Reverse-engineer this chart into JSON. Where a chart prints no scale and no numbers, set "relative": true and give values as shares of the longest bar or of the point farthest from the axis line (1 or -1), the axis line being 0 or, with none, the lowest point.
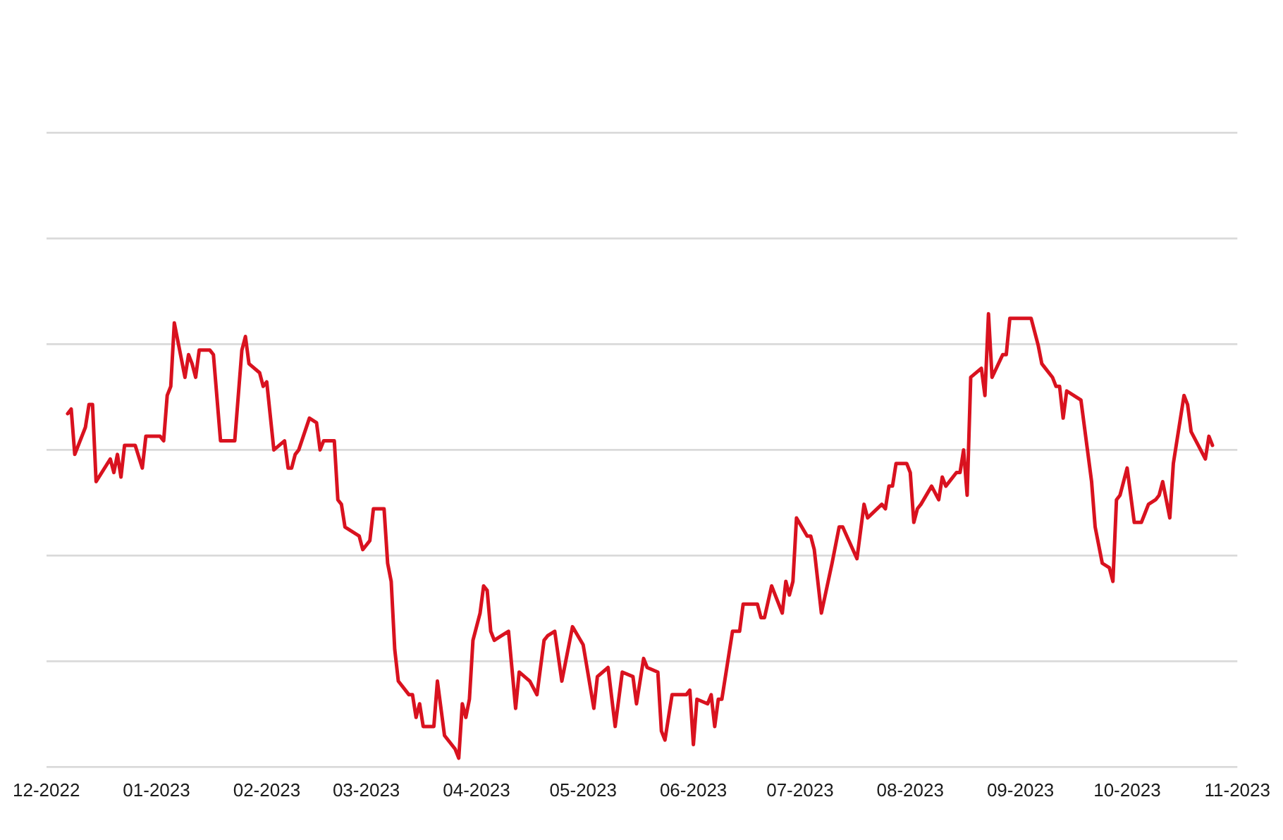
{
  "chart_data": {
    "type": "line",
    "relative": true,
    "grid": "y",
    "tick_labels": "x",
    "line_style": "solid",
    "xlim": [
      "2022-12-01",
      "2023-11-01"
    ],
    "xticks": [
      {
        "value": "2022-12-01",
        "label": "12-2022"
      },
      {
        "value": "2023-01-01",
        "label": "01-2023"
      },
      {
        "value": "2023-02-01",
        "label": "02-2023"
      },
      {
        "value": "2023-03-01",
        "label": "03-2023"
      },
      {
        "value": "2023-04-01",
        "label": "04-2023"
      },
      {
        "value": "2023-05-01",
        "label": "05-2023"
      },
      {
        "value": "2023-06-01",
        "label": "06-2023"
      },
      {
        "value": "2023-07-01",
        "label": "07-2023"
      },
      {
        "value": "2023-08-01",
        "label": "08-2023"
      },
      {
        "value": "2023-09-01",
        "label": "09-2023"
      },
      {
        "value": "2023-10-01",
        "label": "10-2023"
      },
      {
        "value": "2023-11-01",
        "label": "11-2023"
      }
    ],
    "x": [
      "2022-12-07",
      "2022-12-08",
      "2022-12-09",
      "2022-12-12",
      "2022-12-13",
      "2022-12-14",
      "2022-12-15",
      "2022-12-19",
      "2022-12-20",
      "2022-12-21",
      "2022-12-22",
      "2022-12-23",
      "2022-12-26",
      "2022-12-28",
      "2022-12-29",
      "2022-12-30",
      "2023-01-02",
      "2023-01-03",
      "2023-01-04",
      "2023-01-05",
      "2023-01-06",
      "2023-01-07",
      "2023-01-09",
      "2023-01-10",
      "2023-01-11",
      "2023-01-12",
      "2023-01-13",
      "2023-01-16",
      "2023-01-17",
      "2023-01-19",
      "2023-01-23",
      "2023-01-25",
      "2023-01-26",
      "2023-01-27",
      "2023-01-30",
      "2023-01-31",
      "2023-02-01",
      "2023-02-03",
      "2023-02-06",
      "2023-02-07",
      "2023-02-08",
      "2023-02-09",
      "2023-02-10",
      "2023-02-13",
      "2023-02-15",
      "2023-02-16",
      "2023-02-17",
      "2023-02-20",
      "2023-02-21",
      "2023-02-22",
      "2023-02-23",
      "2023-02-27",
      "2023-02-28",
      "2023-03-02",
      "2023-03-03",
      "2023-03-06",
      "2023-03-07",
      "2023-03-08",
      "2023-03-09",
      "2023-03-10",
      "2023-03-13",
      "2023-03-14",
      "2023-03-15",
      "2023-03-16",
      "2023-03-17",
      "2023-03-20",
      "2023-03-21",
      "2023-03-23",
      "2023-03-26",
      "2023-03-27",
      "2023-03-28",
      "2023-03-29",
      "2023-03-30",
      "2023-03-31",
      "2023-04-02",
      "2023-04-03",
      "2023-04-04",
      "2023-04-05",
      "2023-04-06",
      "2023-04-08",
      "2023-04-10",
      "2023-04-12",
      "2023-04-13",
      "2023-04-16",
      "2023-04-18",
      "2023-04-20",
      "2023-04-21",
      "2023-04-23",
      "2023-04-25",
      "2023-04-26",
      "2023-04-28",
      "2023-05-01",
      "2023-05-04",
      "2023-05-05",
      "2023-05-08",
      "2023-05-10",
      "2023-05-12",
      "2023-05-15",
      "2023-05-16",
      "2023-05-18",
      "2023-05-19",
      "2023-05-22",
      "2023-05-23",
      "2023-05-24",
      "2023-05-26",
      "2023-05-30",
      "2023-05-31",
      "2023-06-01",
      "2023-06-02",
      "2023-06-05",
      "2023-06-06",
      "2023-06-07",
      "2023-06-08",
      "2023-06-09",
      "2023-06-12",
      "2023-06-14",
      "2023-06-15",
      "2023-06-19",
      "2023-06-20",
      "2023-06-21",
      "2023-06-23",
      "2023-06-26",
      "2023-06-27",
      "2023-06-28",
      "2023-06-29",
      "2023-06-30",
      "2023-07-03",
      "2023-07-04",
      "2023-07-05",
      "2023-07-07",
      "2023-07-10",
      "2023-07-12",
      "2023-07-13",
      "2023-07-17",
      "2023-07-19",
      "2023-07-20",
      "2023-07-24",
      "2023-07-25",
      "2023-07-26",
      "2023-07-27",
      "2023-07-28",
      "2023-07-31",
      "2023-08-01",
      "2023-08-02",
      "2023-08-03",
      "2023-08-04",
      "2023-08-07",
      "2023-08-09",
      "2023-08-10",
      "2023-08-11",
      "2023-08-14",
      "2023-08-15",
      "2023-08-16",
      "2023-08-17",
      "2023-08-18",
      "2023-08-21",
      "2023-08-22",
      "2023-08-23",
      "2023-08-24",
      "2023-08-27",
      "2023-08-28",
      "2023-08-29",
      "2023-08-30",
      "2023-09-01",
      "2023-09-04",
      "2023-09-06",
      "2023-09-07",
      "2023-09-08",
      "2023-09-10",
      "2023-09-11",
      "2023-09-12",
      "2023-09-13",
      "2023-09-14",
      "2023-09-18",
      "2023-09-21",
      "2023-09-22",
      "2023-09-24",
      "2023-09-26",
      "2023-09-27",
      "2023-09-28",
      "2023-09-29",
      "2023-10-01",
      "2023-10-03",
      "2023-10-04",
      "2023-10-05",
      "2023-10-06",
      "2023-10-07",
      "2023-10-09",
      "2023-10-10",
      "2023-10-11",
      "2023-10-12",
      "2023-10-13",
      "2023-10-14",
      "2023-10-17",
      "2023-10-18",
      "2023-10-19",
      "2023-10-21",
      "2023-10-23",
      "2023-10-24",
      "2023-10-25"
    ],
    "series": [
      {
        "color": "#d9121f",
        "values": [
          0.78,
          0.79,
          0.69,
          0.75,
          0.8,
          0.8,
          0.63,
          0.68,
          0.65,
          0.69,
          0.64,
          0.71,
          0.71,
          0.66,
          0.73,
          0.73,
          0.73,
          0.72,
          0.82,
          0.84,
          0.98,
          0.94,
          0.86,
          0.91,
          0.89,
          0.86,
          0.92,
          0.92,
          0.91,
          0.72,
          0.72,
          0.92,
          0.95,
          0.89,
          0.87,
          0.84,
          0.85,
          0.7,
          0.72,
          0.66,
          0.66,
          0.69,
          0.7,
          0.77,
          0.76,
          0.7,
          0.72,
          0.72,
          0.59,
          0.58,
          0.53,
          0.51,
          0.48,
          0.5,
          0.57,
          0.57,
          0.45,
          0.41,
          0.26,
          0.19,
          0.16,
          0.16,
          0.11,
          0.14,
          0.09,
          0.09,
          0.19,
          0.07,
          0.04,
          0.02,
          0.14,
          0.11,
          0.15,
          0.28,
          0.34,
          0.4,
          0.39,
          0.3,
          0.28,
          0.29,
          0.3,
          0.13,
          0.21,
          0.19,
          0.16,
          0.28,
          0.29,
          0.3,
          0.19,
          0.23,
          0.31,
          0.27,
          0.13,
          0.2,
          0.22,
          0.09,
          0.21,
          0.2,
          0.14,
          0.24,
          0.22,
          0.21,
          0.08,
          0.06,
          0.16,
          0.16,
          0.17,
          0.05,
          0.15,
          0.14,
          0.16,
          0.09,
          0.15,
          0.15,
          0.3,
          0.3,
          0.36,
          0.36,
          0.33,
          0.33,
          0.4,
          0.34,
          0.41,
          0.38,
          0.41,
          0.55,
          0.51,
          0.51,
          0.48,
          0.34,
          0.45,
          0.53,
          0.53,
          0.46,
          0.58,
          0.55,
          0.58,
          0.57,
          0.62,
          0.62,
          0.67,
          0.67,
          0.65,
          0.54,
          0.57,
          0.58,
          0.62,
          0.59,
          0.64,
          0.62,
          0.65,
          0.65,
          0.7,
          0.6,
          0.86,
          0.88,
          0.82,
          1.0,
          0.86,
          0.91,
          0.91,
          0.99,
          0.99,
          0.99,
          0.99,
          0.93,
          0.89,
          0.88,
          0.86,
          0.84,
          0.84,
          0.77,
          0.83,
          0.81,
          0.63,
          0.53,
          0.45,
          0.44,
          0.41,
          0.59,
          0.6,
          0.66,
          0.54,
          0.54,
          0.54,
          0.56,
          0.58,
          0.59,
          0.6,
          0.63,
          0.59,
          0.55,
          0.67,
          0.82,
          0.8,
          0.74,
          0.71,
          0.68,
          0.73,
          0.71
        ]
      }
    ]
  }
}
